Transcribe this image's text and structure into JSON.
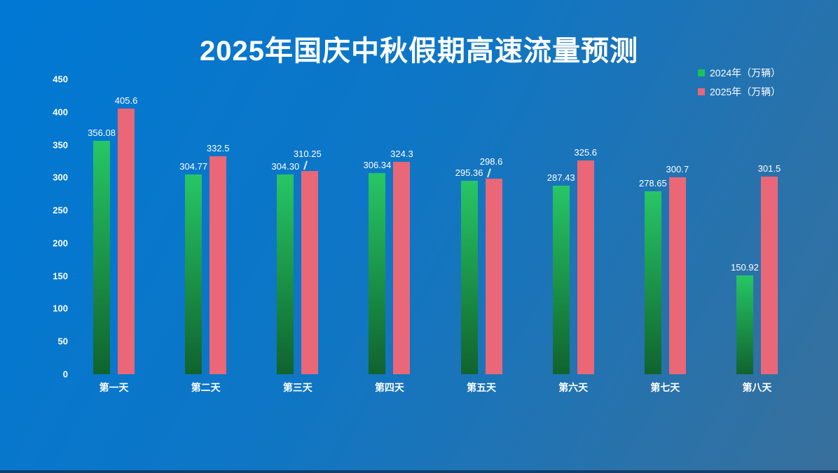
{
  "page": {
    "title": "2025年国庆中秋假期高速流量预测"
  },
  "legend": {
    "items": [
      {
        "label": "2024年（万辆）",
        "color": "#1fc05c"
      },
      {
        "label": "2025年（万辆）",
        "color": "#ea6778"
      }
    ]
  },
  "chart_data": {
    "type": "bar",
    "title": "2025年国庆中秋假期高速流量预测",
    "categories": [
      "第一天",
      "第二天",
      "第三天",
      "第四天",
      "第五天",
      "第六天",
      "第七天",
      "第八天"
    ],
    "series": [
      {
        "name": "2024年（万辆）",
        "bar_color_top": "#27c666",
        "bar_color_bottom": "#10632e",
        "values": [
          356.08,
          304.77,
          304.3,
          306.34,
          295.36,
          287.43,
          278.65,
          150.92
        ],
        "labels": [
          "356.08",
          "304.77",
          "304.30",
          "306.34",
          "295.36",
          "287.43",
          "278.65",
          "150.92"
        ],
        "callout_indices": []
      },
      {
        "name": "2025年（万辆）",
        "bar_color": "#ea6778",
        "values": [
          405.6,
          332.5,
          310.25,
          324.3,
          298.6,
          325.6,
          300.7,
          301.5
        ],
        "labels": [
          "405.6",
          "332.5",
          "310.25",
          "324.3",
          "298.6",
          "325.6",
          "300.7",
          "301.5"
        ],
        "callout_indices": [
          2,
          4
        ]
      }
    ],
    "y_ticks": [
      0,
      50,
      100,
      150,
      200,
      250,
      300,
      350,
      400,
      450
    ],
    "ylim": [
      0,
      450
    ],
    "grid": false,
    "legend_position": "top-right",
    "background_colors": {
      "top_left": "#0078d4",
      "bottom_right": "#38709c"
    }
  }
}
